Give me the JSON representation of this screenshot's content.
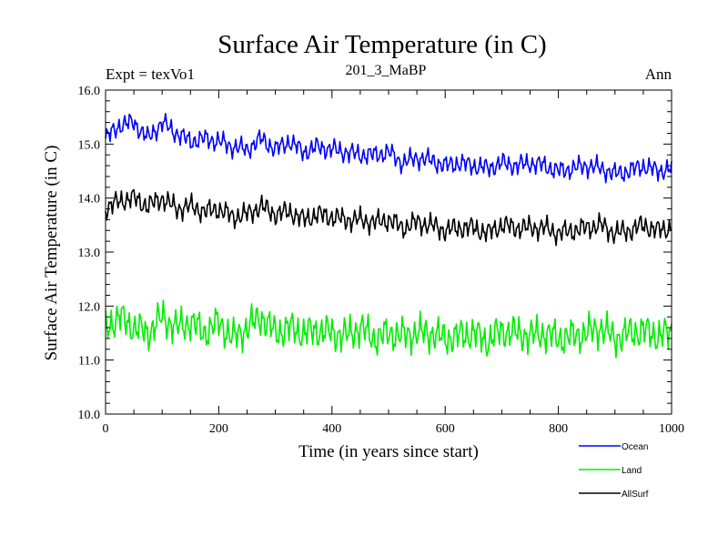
{
  "chart_data": {
    "type": "line",
    "title": "Surface Air Temperature (in C)",
    "subtitle_left": "Expt = texVo1",
    "subtitle_center": "201_3_MaBP",
    "subtitle_right": "Ann",
    "xlabel": "Time (in years since start)",
    "ylabel": "Surface Air Temperature (in C)",
    "xlim": [
      0,
      1000
    ],
    "ylim": [
      10.0,
      16.0
    ],
    "xticks": [
      0,
      200,
      400,
      600,
      800,
      1000
    ],
    "yticks": [
      10.0,
      11.0,
      12.0,
      13.0,
      14.0,
      15.0,
      16.0
    ],
    "xtick_labels": [
      "0",
      "200",
      "400",
      "600",
      "800",
      "1000"
    ],
    "ytick_labels": [
      "10.0",
      "11.0",
      "12.0",
      "13.0",
      "14.0",
      "15.0",
      "16.0"
    ],
    "grid": false,
    "legend_position": "below-right",
    "series": [
      {
        "name": "Ocean",
        "color": "#0000ff",
        "x": [
          0,
          25,
          50,
          75,
          100,
          125,
          150,
          175,
          200,
          225,
          250,
          275,
          300,
          325,
          350,
          375,
          400,
          425,
          450,
          475,
          500,
          525,
          550,
          575,
          600,
          625,
          650,
          675,
          700,
          725,
          750,
          775,
          800,
          825,
          850,
          875,
          900,
          925,
          950,
          975,
          1000
        ],
        "values": [
          15.1,
          15.35,
          15.4,
          15.1,
          15.4,
          15.2,
          15.05,
          15.1,
          15.05,
          14.95,
          14.9,
          15.1,
          14.9,
          15.05,
          14.85,
          14.95,
          14.9,
          14.85,
          14.8,
          14.8,
          14.85,
          14.65,
          14.75,
          14.7,
          14.6,
          14.65,
          14.6,
          14.55,
          14.65,
          14.6,
          14.65,
          14.6,
          14.5,
          14.55,
          14.6,
          14.55,
          14.45,
          14.5,
          14.6,
          14.5,
          14.55
        ]
      },
      {
        "name": "Land",
        "color": "#00ee00",
        "x": [
          0,
          25,
          50,
          75,
          100,
          125,
          150,
          175,
          200,
          225,
          250,
          275,
          300,
          325,
          350,
          375,
          400,
          425,
          450,
          475,
          500,
          525,
          550,
          575,
          600,
          625,
          650,
          675,
          700,
          725,
          750,
          775,
          800,
          825,
          850,
          875,
          900,
          925,
          950,
          975,
          1000
        ],
        "values": [
          11.6,
          11.8,
          11.6,
          11.5,
          11.8,
          11.6,
          11.7,
          11.5,
          11.7,
          11.4,
          11.6,
          11.8,
          11.5,
          11.6,
          11.5,
          11.55,
          11.5,
          11.45,
          11.6,
          11.4,
          11.5,
          11.45,
          11.5,
          11.5,
          11.4,
          11.45,
          11.5,
          11.35,
          11.55,
          11.5,
          11.45,
          11.5,
          11.4,
          11.45,
          11.5,
          11.6,
          11.4,
          11.5,
          11.55,
          11.45,
          11.5
        ]
      },
      {
        "name": "AllSurf",
        "color": "#000000",
        "x": [
          0,
          25,
          50,
          75,
          100,
          125,
          150,
          175,
          200,
          225,
          250,
          275,
          300,
          325,
          350,
          375,
          400,
          425,
          450,
          475,
          500,
          525,
          550,
          575,
          600,
          625,
          650,
          675,
          700,
          725,
          750,
          775,
          800,
          825,
          850,
          875,
          900,
          925,
          950,
          975,
          1000
        ],
        "values": [
          13.8,
          13.95,
          14.0,
          13.85,
          14.0,
          13.8,
          13.85,
          13.75,
          13.8,
          13.65,
          13.7,
          13.85,
          13.7,
          13.75,
          13.6,
          13.7,
          13.65,
          13.6,
          13.6,
          13.55,
          13.6,
          13.45,
          13.55,
          13.5,
          13.4,
          13.45,
          13.45,
          13.35,
          13.5,
          13.45,
          13.45,
          13.45,
          13.35,
          13.4,
          13.45,
          13.5,
          13.35,
          13.4,
          13.5,
          13.4,
          13.45
        ]
      }
    ]
  }
}
